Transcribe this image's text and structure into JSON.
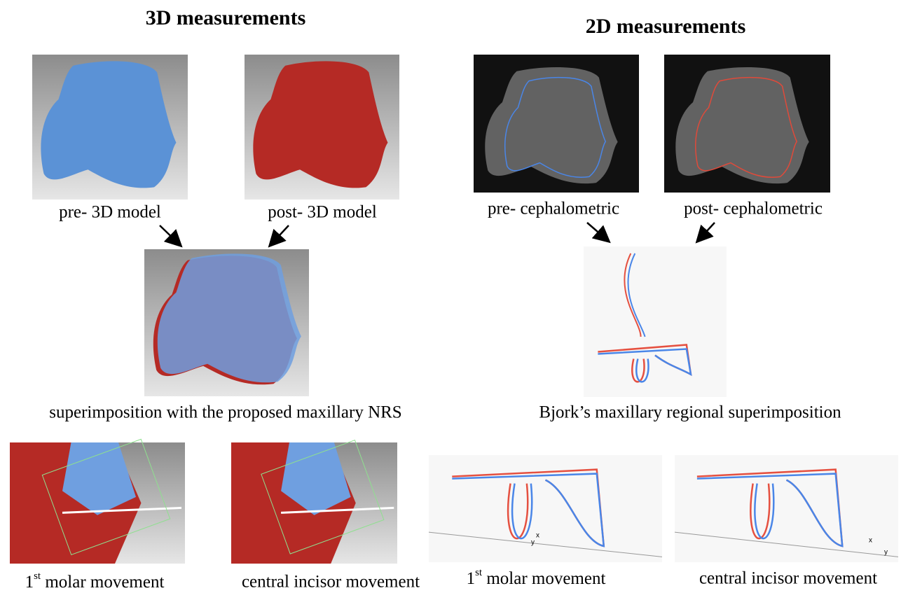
{
  "headings": {
    "left": "3D measurements",
    "right": "2D measurements"
  },
  "captions": {
    "pre_3d": "pre- 3D model",
    "post_3d": "post- 3D model",
    "super_3d": "superimposition with the proposed maxillary NRS",
    "pre_ceph": "pre- cephalometric",
    "post_ceph": "post- cephalometric",
    "super_2d": "Bjork’s maxillary regional superimposition"
  },
  "bottom": [
    {
      "number": "1",
      "suffix": "st",
      "text": " molar movement"
    },
    {
      "text": "central incisor movement"
    },
    {
      "number": "1",
      "suffix": "st",
      "text": " molar movement"
    },
    {
      "text": "central incisor movement"
    }
  ],
  "axis_marks": {
    "x": "x",
    "y": "y"
  }
}
